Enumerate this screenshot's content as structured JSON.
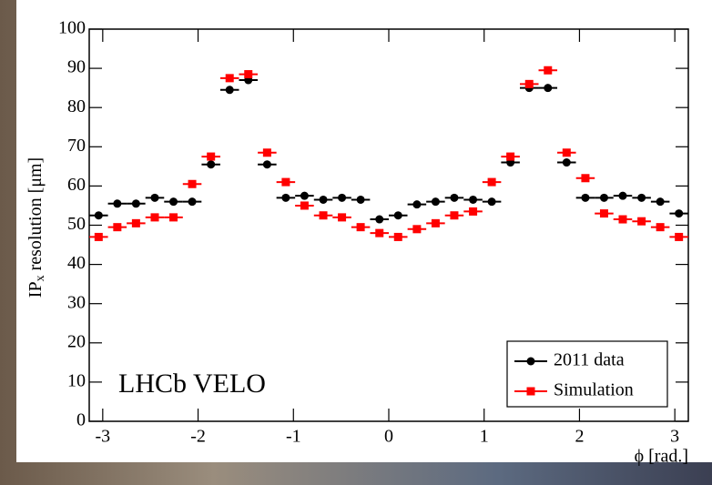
{
  "chart_data": {
    "type": "binned-points",
    "xlabel": "ϕ [rad.]",
    "ylabel": "IP",
    "ylabel_sub": "x",
    "ylabel_rest": " resolution [μm]",
    "annotation": "LHCb VELO",
    "x": [
      -3.043,
      -2.847,
      -2.651,
      -2.454,
      -2.258,
      -2.062,
      -1.865,
      -1.669,
      -1.473,
      -1.276,
      -1.08,
      -0.884,
      -0.687,
      -0.491,
      -0.295,
      -0.098,
      0.098,
      0.295,
      0.491,
      0.687,
      0.884,
      1.08,
      1.276,
      1.473,
      1.669,
      1.865,
      2.062,
      2.258,
      2.454,
      2.651,
      2.847,
      3.043
    ],
    "xerr": 0.098,
    "series": [
      {
        "name": "2011 data",
        "color": "#000000",
        "marker": "circle",
        "values": [
          52.5,
          55.5,
          55.5,
          57,
          56,
          56,
          65.5,
          84.5,
          87,
          65.5,
          57,
          57.5,
          56.5,
          57,
          56.5,
          51.5,
          52.5,
          55.3,
          56,
          57,
          56.5,
          56,
          66,
          85,
          85,
          66,
          57,
          57,
          57.5,
          57,
          56,
          53
        ]
      },
      {
        "name": "Simulation",
        "color": "#ff0000",
        "marker": "square",
        "values": [
          47,
          49.5,
          50.5,
          52,
          52,
          60.5,
          67.5,
          87.5,
          88.5,
          68.5,
          61,
          55,
          52.5,
          52,
          49.5,
          48,
          47,
          49,
          50.5,
          52.5,
          53.5,
          61,
          67.5,
          86,
          89.5,
          68.5,
          62,
          53,
          51.5,
          51,
          49.5,
          47
        ]
      }
    ],
    "xlim": [
      -3.1416,
      3.1416
    ],
    "xticks": [
      -3,
      -2,
      -1,
      0,
      1,
      2,
      3
    ],
    "ylim": [
      0,
      100
    ],
    "yticks": [
      0,
      10,
      20,
      30,
      40,
      50,
      60,
      70,
      80,
      90,
      100
    ],
    "legend": "bottom-right"
  }
}
